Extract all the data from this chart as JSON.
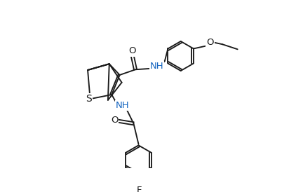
{
  "background_color": "#ffffff",
  "line_color": "#1a1a1a",
  "atom_colors": {
    "O": "#000000",
    "N": "#1565c0",
    "S": "#000000",
    "F": "#000000"
  },
  "figsize": [
    4.22,
    2.74
  ],
  "dpi": 100,
  "lw": 1.35
}
